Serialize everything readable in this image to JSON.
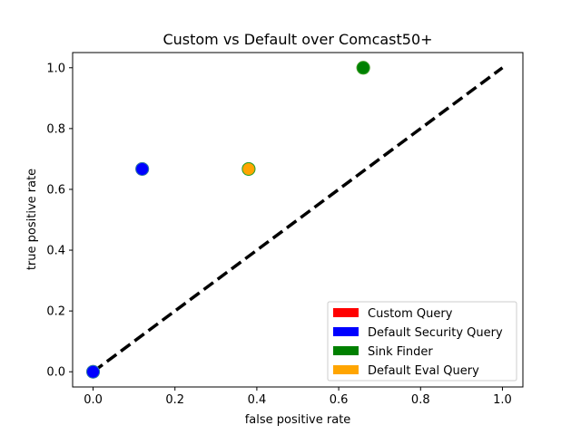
{
  "chart_data": {
    "type": "scatter",
    "title": "Custom vs Default over Comcast50+",
    "xlabel": "false positive rate",
    "ylabel": "true positive rate",
    "xlim": [
      -0.05,
      1.05
    ],
    "ylim": [
      -0.05,
      1.05
    ],
    "xticks": [
      "0.0",
      "0.2",
      "0.4",
      "0.6",
      "0.8",
      "1.0"
    ],
    "yticks": [
      "0.0",
      "0.2",
      "0.4",
      "0.6",
      "0.8",
      "1.0"
    ],
    "grid": false,
    "legend_position": "lower-right",
    "diagonal": {
      "x": [
        0,
        1
      ],
      "y": [
        0,
        1
      ],
      "style": "dashed",
      "color": "#000000"
    },
    "series": [
      {
        "name": "Custom Query",
        "color": "#ff0000",
        "edge": "#ff7f0e",
        "points": [
          {
            "x": 0.12,
            "y": 0.667
          },
          {
            "x": 0.66,
            "y": 1.0
          },
          {
            "x": 0.0,
            "y": 0.0
          }
        ]
      },
      {
        "name": "Default Security Query",
        "color": "#0000ff",
        "edge": "#1f77b4",
        "points": [
          {
            "x": 0.12,
            "y": 0.667
          },
          {
            "x": 0.0,
            "y": 0.0
          }
        ]
      },
      {
        "name": "Sink Finder",
        "color": "#008000",
        "edge": "#2ca02c",
        "points": [
          {
            "x": 0.66,
            "y": 1.0
          },
          {
            "x": 0.38,
            "y": 0.667
          }
        ]
      },
      {
        "name": "Default Eval Query",
        "color": "#ffa500",
        "edge": "#2ca02c",
        "points": [
          {
            "x": 0.38,
            "y": 0.667
          }
        ]
      }
    ]
  }
}
